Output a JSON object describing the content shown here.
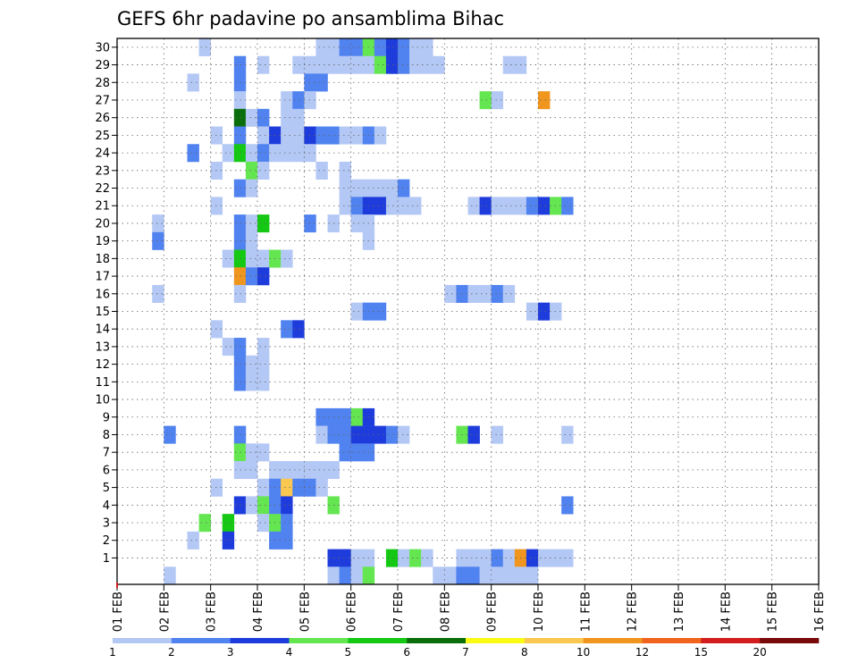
{
  "chart_data": {
    "type": "heatmap",
    "title": "GEFS 6hr padavine po ansamblima Bihac",
    "x_tick_labels": [
      "01 FEB",
      "02 FEB",
      "03 FEB",
      "04 FEB",
      "05 FEB",
      "06 FEB",
      "07 FEB",
      "08 FEB",
      "09 FEB",
      "10 FEB",
      "11 FEB",
      "12 FEB",
      "13 FEB",
      "14 FEB",
      "15 FEB",
      "16 FEB"
    ],
    "y_tick_labels": [
      "1",
      "2",
      "3",
      "4",
      "5",
      "6",
      "7",
      "8",
      "9",
      "10",
      "11",
      "12",
      "13",
      "14",
      "15",
      "16",
      "17",
      "18",
      "19",
      "20",
      "21",
      "22",
      "23",
      "24",
      "25",
      "26",
      "27",
      "28",
      "29",
      "30"
    ],
    "time_steps": 60,
    "members": 30,
    "x_range_days": [
      1,
      16
    ],
    "grid": true,
    "legend": {
      "position": "bottom",
      "labels": [
        "1",
        "2",
        "3",
        "4",
        "5",
        "6",
        "7",
        "8",
        "10",
        "12",
        "15",
        "20"
      ],
      "colors": [
        "#b4c8f5",
        "#5082f0",
        "#1e3cdc",
        "#64e650",
        "#14c814",
        "#0a6e0a",
        "#fafa14",
        "#fac850",
        "#f0961e",
        "#f0641e",
        "#d21e1e",
        "#780a0a"
      ]
    },
    "cells": [
      {
        "m": 30,
        "t": [
          [
            7,
            0
          ],
          [
            17,
            0
          ],
          [
            18,
            0
          ],
          [
            19,
            1
          ],
          [
            20,
            1
          ],
          [
            21,
            3
          ],
          [
            22,
            1
          ],
          [
            23,
            2
          ],
          [
            24,
            1
          ],
          [
            25,
            0
          ],
          [
            26,
            0
          ]
        ]
      },
      {
        "m": 29,
        "t": [
          [
            10,
            1
          ],
          [
            12,
            0
          ],
          [
            15,
            0
          ],
          [
            16,
            0
          ],
          [
            17,
            0
          ],
          [
            18,
            0
          ],
          [
            19,
            0
          ],
          [
            20,
            0
          ],
          [
            21,
            0
          ],
          [
            22,
            3
          ],
          [
            23,
            2
          ],
          [
            24,
            1
          ],
          [
            25,
            0
          ],
          [
            26,
            0
          ],
          [
            27,
            0
          ],
          [
            33,
            0
          ],
          [
            34,
            0
          ]
        ]
      },
      {
        "m": 28,
        "t": [
          [
            6,
            0
          ],
          [
            10,
            1
          ],
          [
            16,
            1
          ],
          [
            17,
            1
          ]
        ]
      },
      {
        "m": 27,
        "t": [
          [
            10,
            0
          ],
          [
            14,
            0
          ],
          [
            15,
            1
          ],
          [
            16,
            0
          ],
          [
            31,
            3
          ],
          [
            32,
            0
          ],
          [
            36,
            8
          ]
        ]
      },
      {
        "m": 26,
        "t": [
          [
            10,
            5
          ],
          [
            11,
            0
          ],
          [
            12,
            1
          ],
          [
            14,
            0
          ],
          [
            15,
            0
          ]
        ]
      },
      {
        "m": 25,
        "t": [
          [
            8,
            0
          ],
          [
            10,
            1
          ],
          [
            12,
            0
          ],
          [
            13,
            2
          ],
          [
            14,
            0
          ],
          [
            15,
            0
          ],
          [
            16,
            2
          ],
          [
            17,
            1
          ],
          [
            18,
            1
          ],
          [
            19,
            0
          ],
          [
            20,
            0
          ],
          [
            21,
            1
          ],
          [
            22,
            0
          ]
        ]
      },
      {
        "m": 24,
        "t": [
          [
            6,
            1
          ],
          [
            9,
            0
          ],
          [
            10,
            4
          ],
          [
            11,
            0
          ],
          [
            12,
            1
          ],
          [
            13,
            0
          ],
          [
            14,
            0
          ],
          [
            15,
            0
          ],
          [
            16,
            0
          ]
        ]
      },
      {
        "m": 23,
        "t": [
          [
            8,
            0
          ],
          [
            11,
            3
          ],
          [
            12,
            0
          ],
          [
            17,
            0
          ],
          [
            19,
            0
          ]
        ]
      },
      {
        "m": 22,
        "t": [
          [
            10,
            1
          ],
          [
            11,
            0
          ],
          [
            19,
            0
          ],
          [
            20,
            0
          ],
          [
            21,
            0
          ],
          [
            22,
            0
          ],
          [
            23,
            0
          ],
          [
            24,
            1
          ]
        ]
      },
      {
        "m": 21,
        "t": [
          [
            8,
            0
          ],
          [
            19,
            0
          ],
          [
            20,
            1
          ],
          [
            21,
            2
          ],
          [
            22,
            2
          ],
          [
            23,
            0
          ],
          [
            24,
            0
          ],
          [
            25,
            0
          ],
          [
            30,
            0
          ],
          [
            31,
            2
          ],
          [
            32,
            0
          ],
          [
            33,
            0
          ],
          [
            34,
            0
          ],
          [
            35,
            1
          ],
          [
            36,
            2
          ],
          [
            37,
            3
          ],
          [
            38,
            1
          ]
        ]
      },
      {
        "m": 20,
        "t": [
          [
            3,
            0
          ],
          [
            10,
            1
          ],
          [
            11,
            0
          ],
          [
            12,
            4
          ],
          [
            16,
            1
          ],
          [
            18,
            0
          ],
          [
            20,
            0
          ],
          [
            21,
            0
          ]
        ]
      },
      {
        "m": 19,
        "t": [
          [
            3,
            1
          ],
          [
            10,
            1
          ],
          [
            11,
            0
          ],
          [
            21,
            0
          ]
        ]
      },
      {
        "m": 18,
        "t": [
          [
            9,
            0
          ],
          [
            10,
            4
          ],
          [
            11,
            0
          ],
          [
            12,
            0
          ],
          [
            13,
            3
          ],
          [
            14,
            0
          ]
        ]
      },
      {
        "m": 17,
        "t": [
          [
            10,
            8
          ],
          [
            11,
            1
          ],
          [
            12,
            2
          ]
        ]
      },
      {
        "m": 16,
        "t": [
          [
            3,
            0
          ],
          [
            10,
            0
          ],
          [
            28,
            0
          ],
          [
            29,
            1
          ],
          [
            30,
            0
          ],
          [
            31,
            0
          ],
          [
            32,
            1
          ],
          [
            33,
            0
          ]
        ]
      },
      {
        "m": 15,
        "t": [
          [
            20,
            0
          ],
          [
            21,
            1
          ],
          [
            22,
            1
          ],
          [
            35,
            0
          ],
          [
            36,
            2
          ],
          [
            37,
            0
          ]
        ]
      },
      {
        "m": 14,
        "t": [
          [
            8,
            0
          ],
          [
            14,
            1
          ],
          [
            15,
            2
          ]
        ]
      },
      {
        "m": 13,
        "t": [
          [
            9,
            0
          ],
          [
            10,
            1
          ],
          [
            12,
            0
          ]
        ]
      },
      {
        "m": 12,
        "t": [
          [
            10,
            1
          ],
          [
            11,
            0
          ],
          [
            12,
            0
          ]
        ]
      },
      {
        "m": 11,
        "t": [
          [
            10,
            1
          ],
          [
            11,
            0
          ],
          [
            12,
            0
          ]
        ]
      },
      {
        "m": 9,
        "t": [
          [
            17,
            1
          ],
          [
            18,
            1
          ],
          [
            19,
            1
          ],
          [
            20,
            3
          ],
          [
            21,
            2
          ]
        ]
      },
      {
        "m": 8,
        "t": [
          [
            4,
            1
          ],
          [
            10,
            1
          ],
          [
            17,
            0
          ],
          [
            18,
            1
          ],
          [
            19,
            1
          ],
          [
            20,
            2
          ],
          [
            21,
            2
          ],
          [
            22,
            2
          ],
          [
            23,
            1
          ],
          [
            24,
            0
          ],
          [
            29,
            3
          ],
          [
            30,
            2
          ],
          [
            32,
            0
          ],
          [
            38,
            0
          ]
        ]
      },
      {
        "m": 7,
        "t": [
          [
            10,
            3
          ],
          [
            11,
            0
          ],
          [
            12,
            0
          ],
          [
            19,
            1
          ],
          [
            20,
            1
          ],
          [
            21,
            1
          ]
        ]
      },
      {
        "m": 6,
        "t": [
          [
            10,
            0
          ],
          [
            11,
            0
          ],
          [
            13,
            0
          ],
          [
            14,
            0
          ],
          [
            15,
            0
          ],
          [
            16,
            0
          ],
          [
            17,
            0
          ],
          [
            18,
            0
          ]
        ]
      },
      {
        "m": 5,
        "t": [
          [
            8,
            0
          ],
          [
            12,
            0
          ],
          [
            13,
            1
          ],
          [
            14,
            7
          ],
          [
            15,
            1
          ],
          [
            16,
            1
          ],
          [
            17,
            0
          ]
        ]
      },
      {
        "m": 4,
        "t": [
          [
            10,
            2
          ],
          [
            11,
            0
          ],
          [
            12,
            3
          ],
          [
            13,
            1
          ],
          [
            14,
            2
          ],
          [
            18,
            3
          ],
          [
            38,
            1
          ]
        ]
      },
      {
        "m": 3,
        "t": [
          [
            7,
            3
          ],
          [
            9,
            4
          ],
          [
            12,
            0
          ],
          [
            13,
            3
          ],
          [
            14,
            1
          ]
        ]
      },
      {
        "m": 2,
        "t": [
          [
            6,
            0
          ],
          [
            9,
            2
          ],
          [
            13,
            1
          ],
          [
            14,
            1
          ]
        ]
      },
      {
        "m": 1,
        "t": [
          [
            18,
            2
          ],
          [
            19,
            2
          ],
          [
            20,
            0
          ],
          [
            21,
            0
          ],
          [
            23,
            4
          ],
          [
            24,
            0
          ],
          [
            25,
            3
          ],
          [
            26,
            0
          ],
          [
            29,
            0
          ],
          [
            30,
            0
          ],
          [
            31,
            0
          ],
          [
            32,
            1
          ],
          [
            33,
            0
          ],
          [
            34,
            8
          ],
          [
            35,
            2
          ],
          [
            36,
            0
          ],
          [
            37,
            0
          ],
          [
            38,
            0
          ]
        ]
      },
      {
        "m": 0,
        "t": [
          [
            4,
            0
          ],
          [
            18,
            0
          ],
          [
            19,
            1
          ],
          [
            20,
            0
          ],
          [
            21,
            3
          ],
          [
            27,
            0
          ],
          [
            28,
            0
          ],
          [
            29,
            1
          ],
          [
            30,
            1
          ],
          [
            31,
            0
          ],
          [
            32,
            0
          ],
          [
            33,
            0
          ],
          [
            34,
            0
          ],
          [
            35,
            0
          ]
        ]
      }
    ]
  }
}
